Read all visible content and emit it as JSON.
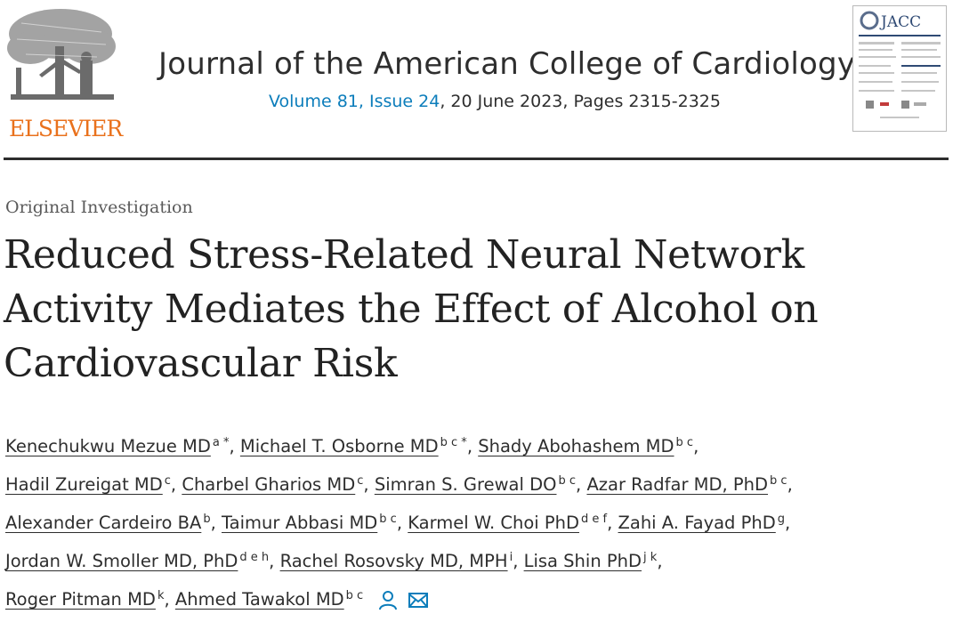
{
  "publisher": {
    "name": "ELSEVIER",
    "logo_icon": "elsevier-tree-icon"
  },
  "journal": {
    "title": "Journal of the American College of Cardiology",
    "volume_issue": "Volume 81, Issue 24",
    "date_pages": ", 20 June 2023, Pages 2315-2325",
    "cover_label": "JACC"
  },
  "article": {
    "type": "Original Investigation",
    "title": "Reduced Stress-Related Neural Network Activity Mediates the Effect of Alcohol on Cardiovascular Risk"
  },
  "authors": [
    {
      "name": "Kenechukwu Mezue MD",
      "sup": "a *"
    },
    {
      "name": "Michael T. Osborne MD",
      "sup": "b c *"
    },
    {
      "name": "Shady Abohashem MD",
      "sup": "b c"
    },
    {
      "name": "Hadil Zureigat MD",
      "sup": "c"
    },
    {
      "name": "Charbel Gharios MD",
      "sup": "c"
    },
    {
      "name": "Simran S. Grewal DO",
      "sup": "b c"
    },
    {
      "name": "Azar Radfar MD, PhD",
      "sup": "b c"
    },
    {
      "name": "Alexander Cardeiro BA",
      "sup": "b"
    },
    {
      "name": "Taimur Abbasi MD",
      "sup": "b c"
    },
    {
      "name": "Karmel W. Choi PhD",
      "sup": "d e f"
    },
    {
      "name": "Zahi A. Fayad PhD",
      "sup": "g"
    },
    {
      "name": "Jordan W. Smoller MD, PhD",
      "sup": "d e h"
    },
    {
      "name": "Rachel Rosovsky MD, MPH",
      "sup": "i"
    },
    {
      "name": "Lisa Shin PhD",
      "sup": "j k"
    },
    {
      "name": "Roger Pitman MD",
      "sup": "k"
    },
    {
      "name": "Ahmed Tawakol MD",
      "sup": "b c"
    }
  ],
  "icons": {
    "person": "person-icon",
    "mail": "mail-icon"
  },
  "colors": {
    "link": "#0c7dbb",
    "publisher": "#e9711c",
    "rule": "#2d2d2d"
  }
}
